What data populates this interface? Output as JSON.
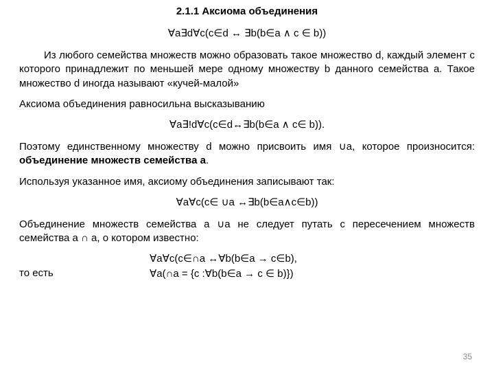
{
  "title": "2.1.1 Аксиома объединения",
  "formula1": "∀a∃d∀c(c∈d ↔ ∃b(b∈a ∧ c ∈ b))",
  "para1": "Из любого семейства множеств можно образовать такое множество d, каждый элемент c которого принадлежит по меньшей мере одному множеству b данного семейства a. Такое множество d иногда называют «кучей-малой»",
  "para2": "Аксиома объединения равносильна высказыванию",
  "formula2": "∀a∃!d∀c(c∈d↔∃b(b∈a ∧ c∈ b)).",
  "para3a": "Поэтому единственному множеству d можно присвоить имя ∪a, которое произносится: ",
  "para3b": "объединение множеств семейства a",
  "para3c": ".",
  "para4": "Используя указанное имя, аксиому объединения записывают так:",
  "formula3": "∀a∀c(c∈ ∪a ↔∃b(b∈a∧c∈b))",
  "para5": "Объединение множеств семейства a   ∪a не следует путать с пересечением множеств семейства a  ∩ a, о котором известно:",
  "formula4": "∀a∀c(c∈∩a ↔∀b(b∈a → c∈b),",
  "row_lead": "то есть",
  "row_rest": "∀a(∩a = {c :∀b(b∈a → c ∈ b)})",
  "page_number": "35"
}
